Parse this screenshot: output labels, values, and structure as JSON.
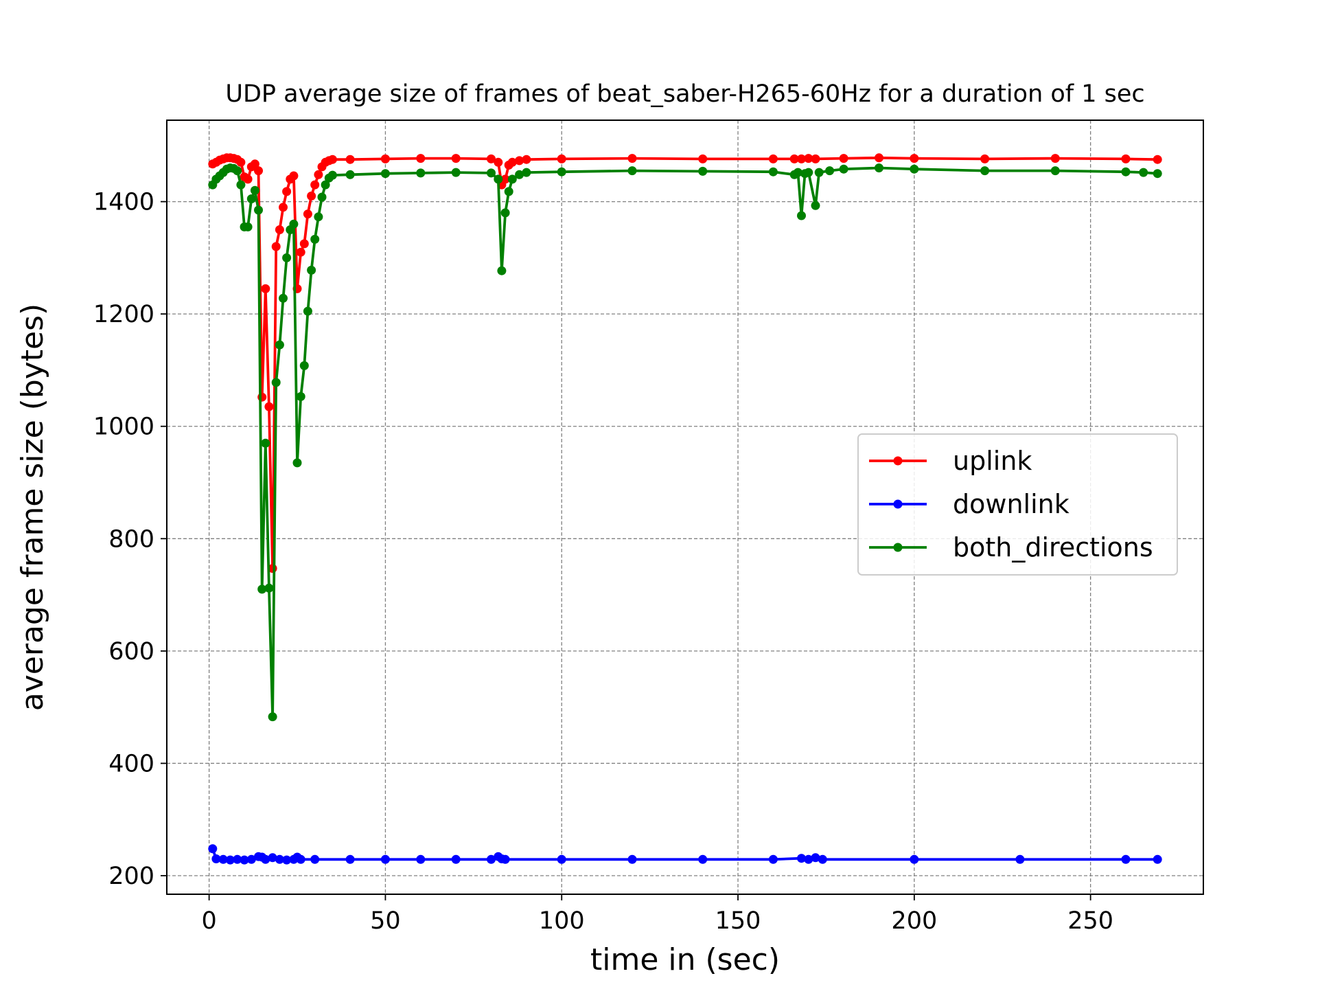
{
  "chart_data": {
    "type": "line",
    "title": "UDP average size of frames of beat_saber-H265-60Hz for a duration of 1 sec",
    "xlabel": "time in (sec)",
    "ylabel": "average frame size (bytes)",
    "xlim": [
      -12,
      282
    ],
    "ylim": [
      167,
      1545
    ],
    "xticks": [
      0,
      50,
      100,
      150,
      200,
      250
    ],
    "yticks": [
      200,
      400,
      600,
      800,
      1000,
      1200,
      1400
    ],
    "grid": true,
    "legend_position": "center-right",
    "series": [
      {
        "name": "uplink",
        "color": "#ff0000",
        "points": [
          [
            1,
            1467
          ],
          [
            2,
            1470
          ],
          [
            3,
            1474
          ],
          [
            4,
            1476
          ],
          [
            5,
            1478
          ],
          [
            6,
            1478
          ],
          [
            7,
            1477
          ],
          [
            8,
            1475
          ],
          [
            9,
            1470
          ],
          [
            10,
            1444
          ],
          [
            11,
            1440
          ],
          [
            12,
            1462
          ],
          [
            13,
            1467
          ],
          [
            14,
            1455
          ],
          [
            15,
            1052
          ],
          [
            16,
            1245
          ],
          [
            17,
            1035
          ],
          [
            18,
            747
          ],
          [
            19,
            1320
          ],
          [
            20,
            1350
          ],
          [
            21,
            1390
          ],
          [
            22,
            1418
          ],
          [
            23,
            1440
          ],
          [
            24,
            1446
          ],
          [
            25,
            1245
          ],
          [
            26,
            1310
          ],
          [
            27,
            1325
          ],
          [
            28,
            1378
          ],
          [
            29,
            1410
          ],
          [
            30,
            1430
          ],
          [
            31,
            1448
          ],
          [
            32,
            1462
          ],
          [
            33,
            1470
          ],
          [
            34,
            1473
          ],
          [
            35,
            1475
          ],
          [
            40,
            1475
          ],
          [
            50,
            1476
          ],
          [
            60,
            1477
          ],
          [
            70,
            1477
          ],
          [
            80,
            1476
          ],
          [
            82,
            1470
          ],
          [
            83,
            1430
          ],
          [
            84,
            1440
          ],
          [
            85,
            1465
          ],
          [
            86,
            1470
          ],
          [
            88,
            1473
          ],
          [
            90,
            1475
          ],
          [
            100,
            1476
          ],
          [
            120,
            1477
          ],
          [
            140,
            1476
          ],
          [
            160,
            1476
          ],
          [
            166,
            1476
          ],
          [
            168,
            1476
          ],
          [
            170,
            1477
          ],
          [
            172,
            1476
          ],
          [
            180,
            1477
          ],
          [
            190,
            1478
          ],
          [
            200,
            1477
          ],
          [
            220,
            1476
          ],
          [
            240,
            1477
          ],
          [
            260,
            1476
          ],
          [
            269,
            1475
          ]
        ]
      },
      {
        "name": "downlink",
        "color": "#0000ff",
        "points": [
          [
            1,
            248
          ],
          [
            2,
            230
          ],
          [
            4,
            229
          ],
          [
            6,
            228
          ],
          [
            8,
            229
          ],
          [
            10,
            228
          ],
          [
            12,
            229
          ],
          [
            14,
            234
          ],
          [
            15,
            233
          ],
          [
            16,
            229
          ],
          [
            18,
            232
          ],
          [
            20,
            229
          ],
          [
            22,
            228
          ],
          [
            24,
            229
          ],
          [
            25,
            233
          ],
          [
            26,
            229
          ],
          [
            30,
            229
          ],
          [
            40,
            229
          ],
          [
            50,
            229
          ],
          [
            60,
            229
          ],
          [
            70,
            229
          ],
          [
            80,
            229
          ],
          [
            82,
            234
          ],
          [
            83,
            230
          ],
          [
            84,
            229
          ],
          [
            100,
            229
          ],
          [
            120,
            229
          ],
          [
            140,
            229
          ],
          [
            160,
            229
          ],
          [
            168,
            231
          ],
          [
            170,
            229
          ],
          [
            172,
            232
          ],
          [
            174,
            229
          ],
          [
            200,
            229
          ],
          [
            230,
            229
          ],
          [
            260,
            229
          ],
          [
            269,
            229
          ]
        ]
      },
      {
        "name": "both_directions",
        "color": "#008000",
        "points": [
          [
            1,
            1430
          ],
          [
            2,
            1440
          ],
          [
            3,
            1446
          ],
          [
            4,
            1452
          ],
          [
            5,
            1458
          ],
          [
            6,
            1460
          ],
          [
            7,
            1459
          ],
          [
            8,
            1455
          ],
          [
            9,
            1430
          ],
          [
            10,
            1355
          ],
          [
            11,
            1355
          ],
          [
            12,
            1405
          ],
          [
            13,
            1420
          ],
          [
            14,
            1385
          ],
          [
            15,
            710
          ],
          [
            16,
            970
          ],
          [
            17,
            712
          ],
          [
            18,
            483
          ],
          [
            19,
            1078
          ],
          [
            20,
            1145
          ],
          [
            21,
            1228
          ],
          [
            22,
            1300
          ],
          [
            23,
            1350
          ],
          [
            24,
            1360
          ],
          [
            25,
            935
          ],
          [
            26,
            1053
          ],
          [
            27,
            1108
          ],
          [
            28,
            1205
          ],
          [
            29,
            1278
          ],
          [
            30,
            1333
          ],
          [
            31,
            1373
          ],
          [
            32,
            1408
          ],
          [
            33,
            1430
          ],
          [
            34,
            1442
          ],
          [
            35,
            1447
          ],
          [
            40,
            1448
          ],
          [
            50,
            1450
          ],
          [
            60,
            1451
          ],
          [
            70,
            1452
          ],
          [
            80,
            1451
          ],
          [
            82,
            1440
          ],
          [
            83,
            1277
          ],
          [
            84,
            1380
          ],
          [
            85,
            1418
          ],
          [
            86,
            1440
          ],
          [
            88,
            1448
          ],
          [
            90,
            1452
          ],
          [
            100,
            1453
          ],
          [
            120,
            1455
          ],
          [
            140,
            1454
          ],
          [
            160,
            1453
          ],
          [
            166,
            1448
          ],
          [
            167,
            1452
          ],
          [
            168,
            1375
          ],
          [
            169,
            1450
          ],
          [
            170,
            1452
          ],
          [
            172,
            1393
          ],
          [
            173,
            1452
          ],
          [
            176,
            1455
          ],
          [
            180,
            1458
          ],
          [
            190,
            1460
          ],
          [
            200,
            1458
          ],
          [
            220,
            1455
          ],
          [
            240,
            1455
          ],
          [
            260,
            1453
          ],
          [
            265,
            1452
          ],
          [
            269,
            1450
          ]
        ]
      }
    ]
  }
}
